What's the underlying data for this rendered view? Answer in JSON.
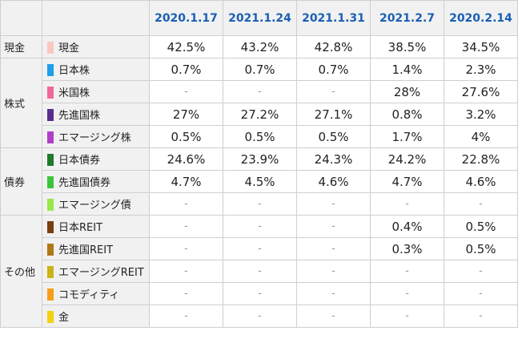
{
  "columns": [
    "2020.1.17",
    "2021.1.24",
    "2021.1.31",
    "2021.2.7",
    "2020.2.14"
  ],
  "groups": [
    {
      "label": "現金",
      "rows": [
        {
          "name": "現金",
          "color": "#f9c8c0",
          "values": [
            "42.5%",
            "43.2%",
            "42.8%",
            "38.5%",
            "34.5%"
          ]
        }
      ]
    },
    {
      "label": "株式",
      "rows": [
        {
          "name": "日本株",
          "color": "#1e9fe8",
          "values": [
            "0.7%",
            "0.7%",
            "0.7%",
            "1.4%",
            "2.3%"
          ]
        },
        {
          "name": "米国株",
          "color": "#f0689a",
          "values": [
            "-",
            "-",
            "-",
            "28%",
            "27.6%"
          ]
        },
        {
          "name": "先進国株",
          "color": "#5a2d8c",
          "values": [
            "27%",
            "27.2%",
            "27.1%",
            "0.8%",
            "3.2%"
          ]
        },
        {
          "name": "エマージング株",
          "color": "#b040c8",
          "values": [
            "0.5%",
            "0.5%",
            "0.5%",
            "1.7%",
            "4%"
          ]
        }
      ]
    },
    {
      "label": "債券",
      "rows": [
        {
          "name": "日本債券",
          "color": "#1f7a2e",
          "values": [
            "24.6%",
            "23.9%",
            "24.3%",
            "24.2%",
            "22.8%"
          ]
        },
        {
          "name": "先進国債券",
          "color": "#3cc43c",
          "values": [
            "4.7%",
            "4.5%",
            "4.6%",
            "4.7%",
            "4.6%"
          ]
        },
        {
          "name": "エマージング債",
          "color": "#98e84a",
          "values": [
            "-",
            "-",
            "-",
            "-",
            "-"
          ]
        }
      ]
    },
    {
      "label": "その他",
      "rows": [
        {
          "name": "日本REIT",
          "color": "#7a3e10",
          "values": [
            "-",
            "-",
            "-",
            "0.4%",
            "0.5%"
          ]
        },
        {
          "name": "先進国REIT",
          "color": "#b07818",
          "values": [
            "-",
            "-",
            "-",
            "0.3%",
            "0.5%"
          ]
        },
        {
          "name": "エマージングREIT",
          "color": "#c8b418",
          "values": [
            "-",
            "-",
            "-",
            "-",
            "-"
          ]
        },
        {
          "name": "コモディティ",
          "color": "#f5a018",
          "values": [
            "-",
            "-",
            "-",
            "-",
            "-"
          ]
        },
        {
          "name": "金",
          "color": "#f5d010",
          "values": [
            "-",
            "-",
            "-",
            "-",
            "-"
          ]
        }
      ]
    }
  ]
}
